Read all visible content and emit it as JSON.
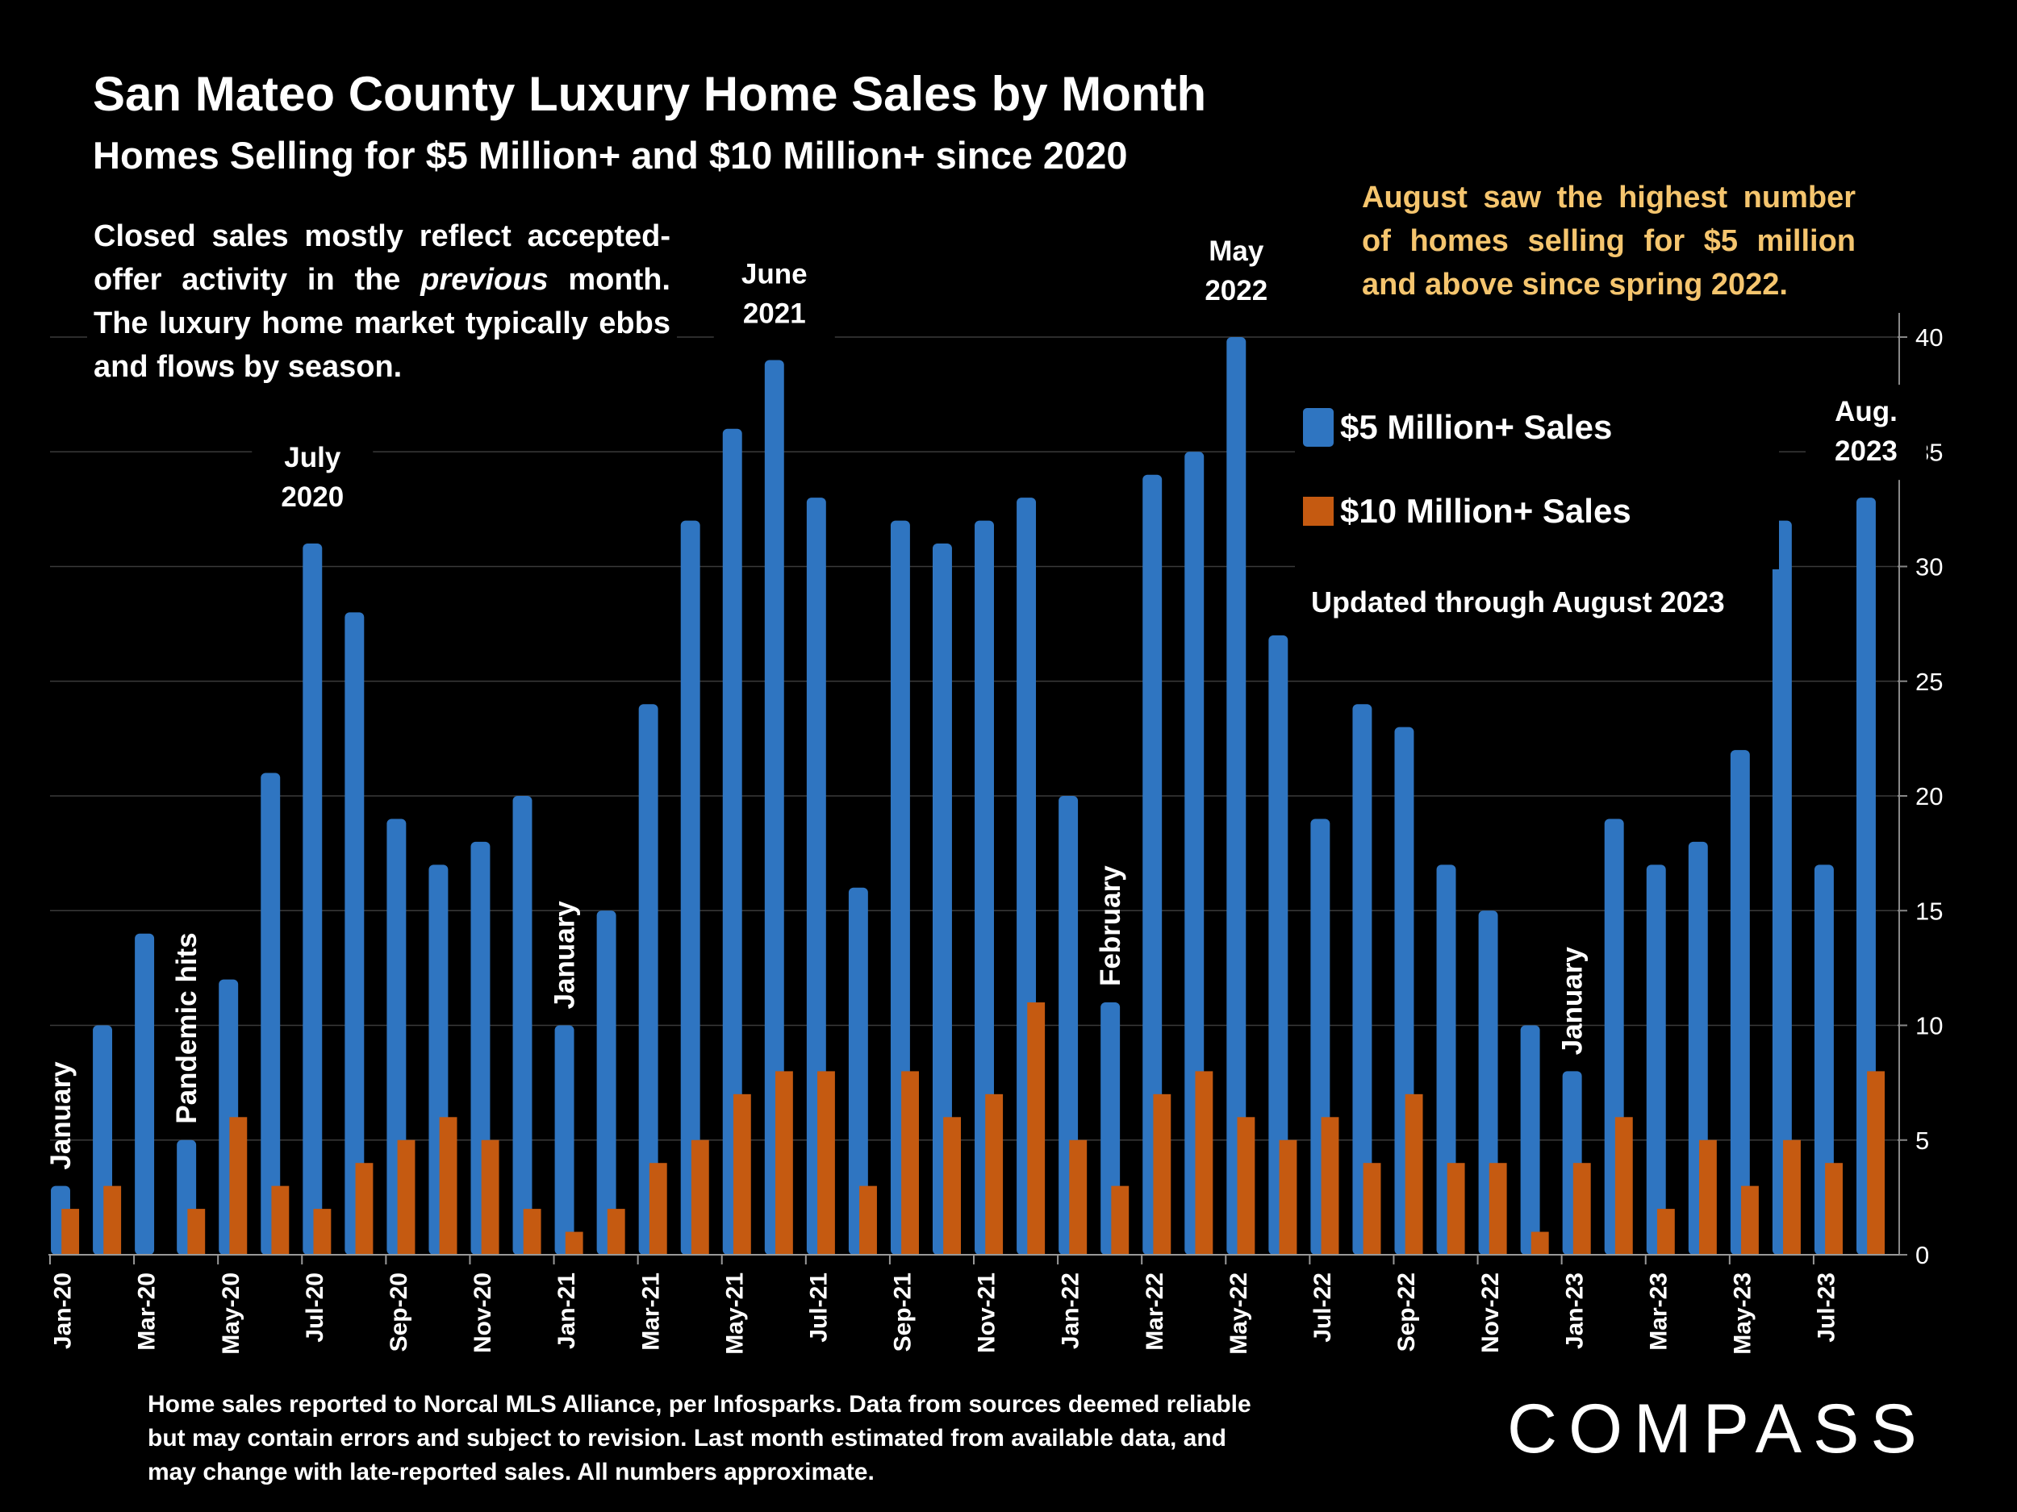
{
  "chart_data": {
    "type": "bar",
    "title": "San Mateo County Luxury Home Sales by Month",
    "subtitle": "Homes Selling for $5 Million+ and $10 Million+ since 2020",
    "xlabel": "",
    "ylabel": "",
    "ylim": [
      0,
      40
    ],
    "yticks": [
      0,
      5,
      10,
      15,
      20,
      25,
      30,
      35,
      40
    ],
    "y_axis_side": "right",
    "grid": true,
    "legend_position": "right",
    "categories": [
      "Jan-20",
      "Feb-20",
      "Mar-20",
      "Apr-20",
      "May-20",
      "Jun-20",
      "Jul-20",
      "Aug-20",
      "Sep-20",
      "Oct-20",
      "Nov-20",
      "Dec-20",
      "Jan-21",
      "Feb-21",
      "Mar-21",
      "Apr-21",
      "May-21",
      "Jun-21",
      "Jul-21",
      "Aug-21",
      "Sep-21",
      "Oct-21",
      "Nov-21",
      "Dec-21",
      "Jan-22",
      "Feb-22",
      "Mar-22",
      "Apr-22",
      "May-22",
      "Jun-22",
      "Jul-22",
      "Aug-22",
      "Sep-22",
      "Oct-22",
      "Nov-22",
      "Dec-22",
      "Jan-23",
      "Feb-23",
      "Mar-23",
      "Apr-23",
      "May-23",
      "Jun-23",
      "Jul-23",
      "Aug-23"
    ],
    "tick_labels_shown": [
      "Jan-20",
      "Mar-20",
      "May-20",
      "Jul-20",
      "Sep-20",
      "Nov-20",
      "Jan-21",
      "Mar-21",
      "May-21",
      "Jul-21",
      "Sep-21",
      "Nov-21",
      "Jan-22",
      "Mar-22",
      "May-22",
      "Jul-22",
      "Sep-22",
      "Nov-22",
      "Jan-23",
      "Mar-23",
      "May-23",
      "Jul-23"
    ],
    "series": [
      {
        "name": "$5 Million+ Sales",
        "color": "#2f75c1",
        "values": [
          3,
          10,
          14,
          5,
          12,
          21,
          31,
          28,
          19,
          17,
          18,
          20,
          10,
          15,
          24,
          32,
          36,
          39,
          33,
          16,
          32,
          31,
          32,
          33,
          20,
          11,
          34,
          35,
          40,
          27,
          19,
          24,
          23,
          17,
          15,
          10,
          8,
          19,
          17,
          18,
          22,
          32,
          17,
          33
        ]
      },
      {
        "name": "$10 Million+ Sales",
        "color": "#c55a11",
        "values": [
          2,
          3,
          0,
          2,
          6,
          3,
          2,
          4,
          5,
          6,
          5,
          2,
          1,
          2,
          4,
          5,
          7,
          8,
          8,
          3,
          8,
          6,
          7,
          11,
          5,
          3,
          7,
          8,
          6,
          5,
          6,
          4,
          7,
          4,
          4,
          1,
          4,
          6,
          2,
          5,
          3,
          5,
          4,
          8
        ]
      }
    ],
    "annotations": [
      {
        "text": "January",
        "category": "Jan-20",
        "rotated": true
      },
      {
        "text": "Pandemic hits",
        "category": "Apr-20",
        "rotated": true
      },
      {
        "text": "July 2020",
        "category": "Jul-20",
        "rotated": false
      },
      {
        "text": "January",
        "category": "Jan-21",
        "rotated": true
      },
      {
        "text": "June 2021",
        "category": "Jun-21",
        "rotated": false
      },
      {
        "text": "February",
        "category": "Feb-22",
        "rotated": true
      },
      {
        "text": "May 2022",
        "category": "May-22",
        "rotated": false
      },
      {
        "text": "January",
        "category": "Jan-23",
        "rotated": true
      },
      {
        "text": "Aug. 2023",
        "category": "Aug-23",
        "rotated": false
      }
    ]
  },
  "text": {
    "title": "San Mateo County Luxury Home Sales by Month",
    "subtitle": "Homes Selling for $5 Million+ and $10 Million+ since 2020",
    "note_part1": "Closed sales mostly reflect accepted-offer activity in the ",
    "note_italic": "previous",
    "note_part2": " month. The luxury home market typically ebbs and flows by season.",
    "highlight": "August saw the highest number of homes selling for $5 million and above since spring 2022.",
    "updated": "Updated through August 2023",
    "legend_blue": "$5 Million+ Sales",
    "legend_orange": "$10 Million+ Sales",
    "footnote": "Home sales reported to Norcal MLS Alliance, per Infosparks. Data from sources deemed reliable but may contain errors and subject to revision.  Last month estimated from available data, and may change with late-reported sales. All numbers approximate.",
    "logo": "COMPASS"
  }
}
